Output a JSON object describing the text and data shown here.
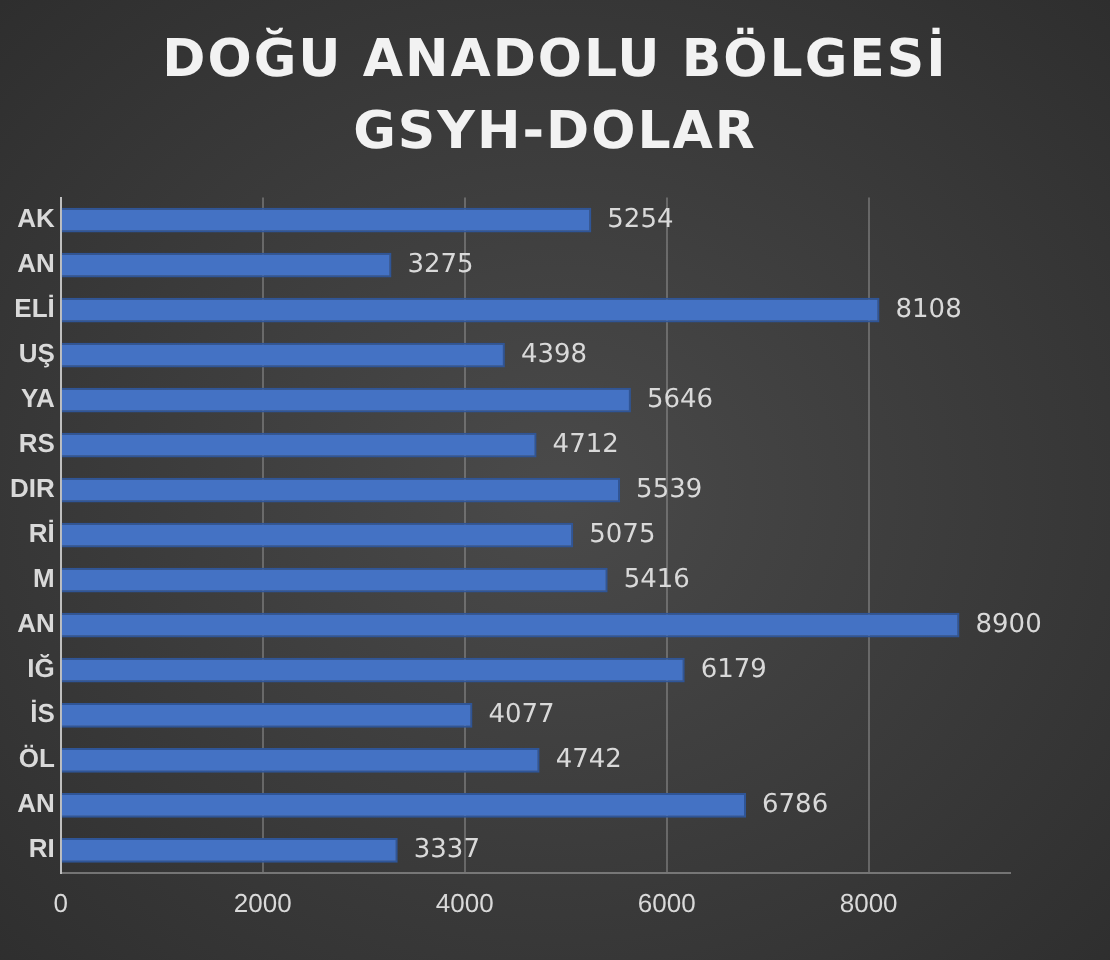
{
  "chart_data": {
    "type": "bar",
    "orientation": "horizontal",
    "title": "DOĞU ANADOLU BÖLGESİ GSYH-DOLAR",
    "categories": [
      "AK",
      "AN",
      "ELİ",
      "UŞ",
      "YA",
      "RS",
      "DIR",
      "Rİ",
      "M",
      "AN",
      "IĞ",
      "İS",
      "ÖL",
      "AN",
      "RI"
    ],
    "values": [
      5254,
      3275,
      8108,
      4398,
      5646,
      4712,
      5539,
      5075,
      5416,
      8900,
      6179,
      4077,
      4742,
      6786,
      3337
    ],
    "color": "#4472c4",
    "xlim": [
      0,
      9400
    ],
    "xticks": [
      0,
      2000,
      4000,
      6000,
      8000
    ],
    "grid": "x",
    "data_labels": true,
    "legend": false
  }
}
